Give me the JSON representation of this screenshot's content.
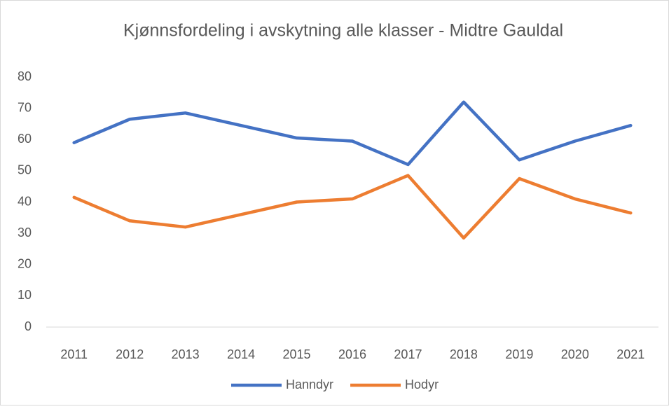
{
  "chart_data": {
    "type": "line",
    "title": "Kjønnsfordeling i avskytning alle klasser - Midtre Gauldal",
    "categories": [
      "2011",
      "2012",
      "2013",
      "2014",
      "2015",
      "2016",
      "2017",
      "2018",
      "2019",
      "2020",
      "2021"
    ],
    "series": [
      {
        "name": "Hanndyr",
        "color": "#4472c4",
        "values": [
          59,
          66.5,
          68.5,
          64.5,
          60.5,
          59.5,
          52,
          72,
          53.5,
          59.5,
          64.5
        ]
      },
      {
        "name": "Hodyr",
        "color": "#ed7d31",
        "values": [
          41.5,
          34,
          32,
          36,
          40,
          41,
          48.5,
          28.5,
          47.5,
          41,
          36.5
        ]
      }
    ],
    "ylim": [
      0,
      80
    ],
    "yticks": [
      0,
      10,
      20,
      30,
      40,
      50,
      60,
      70,
      80
    ],
    "grid": false,
    "legend": "bottom"
  }
}
